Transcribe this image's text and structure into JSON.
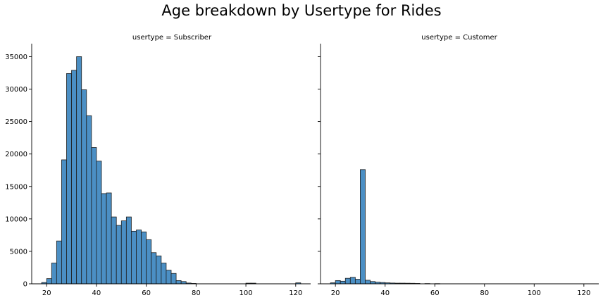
{
  "title": "Age breakdown by Usertype for Rides",
  "chart_data": [
    {
      "type": "bar",
      "subtitle": "usertype = Subscriber",
      "bin_width": 2,
      "xlim": [
        14,
        126
      ],
      "ylim": [
        0,
        37000
      ],
      "xticks": [
        20,
        40,
        60,
        80,
        100,
        120
      ],
      "yticks": [
        0,
        5000,
        10000,
        15000,
        20000,
        25000,
        30000,
        35000
      ],
      "bins": [
        {
          "x": 19,
          "y": 200
        },
        {
          "x": 21,
          "y": 800
        },
        {
          "x": 23,
          "y": 3200
        },
        {
          "x": 25,
          "y": 6600
        },
        {
          "x": 27,
          "y": 19100
        },
        {
          "x": 29,
          "y": 32400
        },
        {
          "x": 31,
          "y": 32900
        },
        {
          "x": 33,
          "y": 35000
        },
        {
          "x": 35,
          "y": 29900
        },
        {
          "x": 37,
          "y": 25900
        },
        {
          "x": 39,
          "y": 21000
        },
        {
          "x": 41,
          "y": 18900
        },
        {
          "x": 43,
          "y": 13900
        },
        {
          "x": 45,
          "y": 14000
        },
        {
          "x": 47,
          "y": 10300
        },
        {
          "x": 49,
          "y": 9000
        },
        {
          "x": 51,
          "y": 9700
        },
        {
          "x": 53,
          "y": 10300
        },
        {
          "x": 55,
          "y": 8100
        },
        {
          "x": 57,
          "y": 8300
        },
        {
          "x": 59,
          "y": 8000
        },
        {
          "x": 61,
          "y": 6800
        },
        {
          "x": 63,
          "y": 4800
        },
        {
          "x": 65,
          "y": 4300
        },
        {
          "x": 67,
          "y": 3200
        },
        {
          "x": 69,
          "y": 2100
        },
        {
          "x": 71,
          "y": 1600
        },
        {
          "x": 73,
          "y": 500
        },
        {
          "x": 75,
          "y": 350
        },
        {
          "x": 77,
          "y": 120
        },
        {
          "x": 79,
          "y": 60
        },
        {
          "x": 101,
          "y": 100
        },
        {
          "x": 103,
          "y": 100
        },
        {
          "x": 121,
          "y": 150
        }
      ]
    },
    {
      "type": "bar",
      "subtitle": "usertype = Customer",
      "bin_width": 2,
      "xlim": [
        14,
        126
      ],
      "ylim": [
        0,
        37000
      ],
      "xticks": [
        20,
        40,
        60,
        80,
        100,
        120
      ],
      "yticks": [
        0,
        5000,
        10000,
        15000,
        20000,
        25000,
        30000,
        35000
      ],
      "bins": [
        {
          "x": 19,
          "y": 150
        },
        {
          "x": 21,
          "y": 500
        },
        {
          "x": 23,
          "y": 400
        },
        {
          "x": 25,
          "y": 850
        },
        {
          "x": 27,
          "y": 1000
        },
        {
          "x": 29,
          "y": 700
        },
        {
          "x": 31,
          "y": 17600
        },
        {
          "x": 33,
          "y": 550
        },
        {
          "x": 35,
          "y": 350
        },
        {
          "x": 37,
          "y": 250
        },
        {
          "x": 39,
          "y": 200
        },
        {
          "x": 41,
          "y": 150
        },
        {
          "x": 43,
          "y": 120
        },
        {
          "x": 45,
          "y": 100
        },
        {
          "x": 47,
          "y": 100
        },
        {
          "x": 49,
          "y": 90
        },
        {
          "x": 51,
          "y": 80
        },
        {
          "x": 53,
          "y": 60
        },
        {
          "x": 57,
          "y": 40
        },
        {
          "x": 61,
          "y": 30
        }
      ]
    }
  ]
}
